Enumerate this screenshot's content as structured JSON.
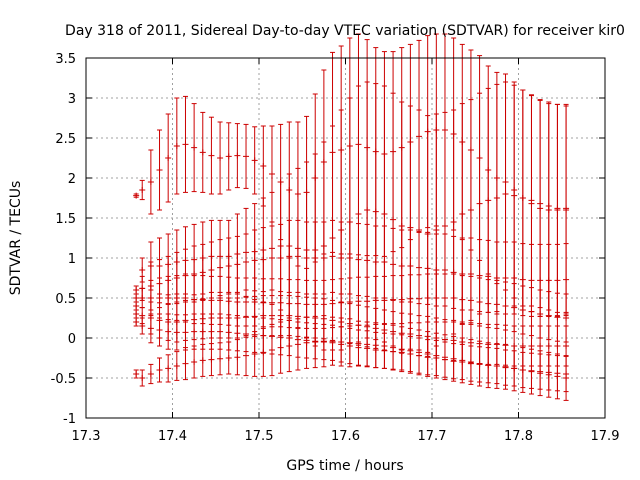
{
  "chart_data": {
    "type": "scatter",
    "title": "Day 318 of 2011, Sidereal Day-to-day VTEC variation (SDTVAR) for receiver kir0",
    "xlabel": "GPS time / hours",
    "ylabel": "SDTVAR / TECUs",
    "xlim": [
      17.3,
      17.9
    ],
    "ylim": [
      -1,
      3.5
    ],
    "xticks": [
      "17.3",
      "17.4",
      "17.5",
      "17.6",
      "17.7",
      "17.8",
      "17.9"
    ],
    "yticks": [
      "-1",
      "-0.5",
      "0",
      "0.5",
      "1",
      "1.5",
      "2",
      "2.5",
      "3",
      "3.5"
    ],
    "grid": true,
    "marker_color": "#cc0000",
    "grid_color": "#a0a0a0",
    "series": [
      {
        "x": [
          17.358,
          17.365,
          17.375,
          17.385,
          17.395,
          17.405,
          17.415,
          17.425,
          17.435,
          17.445,
          17.455,
          17.465,
          17.475,
          17.485,
          17.495,
          17.505,
          17.515,
          17.525,
          17.535,
          17.545,
          17.555,
          17.565,
          17.575,
          17.585,
          17.595,
          17.605,
          17.615,
          17.625,
          17.635,
          17.645,
          17.655,
          17.665,
          17.675,
          17.685,
          17.695,
          17.705,
          17.715,
          17.725,
          17.735,
          17.745,
          17.755,
          17.765,
          17.775,
          17.785,
          17.795,
          17.805,
          17.815,
          17.825,
          17.835,
          17.845,
          17.855
        ],
        "y": [
          1.78,
          1.85,
          1.95,
          2.1,
          2.25,
          2.4,
          2.42,
          2.38,
          2.32,
          2.28,
          2.25,
          2.27,
          2.28,
          2.27,
          2.22,
          2.15,
          2.05,
          1.95,
          1.85,
          1.8,
          1.82,
          2.0,
          2.2,
          2.32,
          2.35,
          2.4,
          2.42,
          2.38,
          2.33,
          2.3,
          2.33,
          2.38,
          2.45,
          2.52,
          2.58,
          2.6,
          2.6,
          2.55,
          2.45,
          2.35,
          2.25,
          2.1,
          2.0,
          1.95,
          1.85,
          1.75,
          1.68,
          1.62,
          1.6,
          1.6,
          1.62
        ],
        "err": [
          0.02,
          0.12,
          0.4,
          0.5,
          0.55,
          0.6,
          0.6,
          0.55,
          0.5,
          0.48,
          0.45,
          0.42,
          0.4,
          0.4,
          0.42,
          0.5,
          0.6,
          0.72,
          0.85,
          0.9,
          0.95,
          1.05,
          1.15,
          1.25,
          1.3,
          1.35,
          1.38,
          1.35,
          1.3,
          1.28,
          1.25,
          1.25,
          1.22,
          1.2,
          1.2,
          1.2,
          1.2,
          1.2,
          1.22,
          1.25,
          1.28,
          1.3,
          1.32,
          1.35,
          1.35,
          1.35,
          1.35,
          1.35,
          1.33,
          1.32,
          1.3
        ]
      },
      {
        "x": [
          17.358,
          17.365,
          17.375,
          17.385,
          17.395,
          17.405,
          17.415,
          17.425,
          17.435,
          17.445,
          17.455,
          17.465,
          17.475,
          17.485,
          17.495,
          17.505,
          17.515,
          17.525,
          17.535,
          17.545,
          17.555,
          17.565,
          17.575,
          17.585,
          17.595,
          17.605,
          17.615,
          17.625,
          17.635,
          17.645,
          17.655,
          17.665,
          17.675,
          17.685,
          17.695,
          17.705,
          17.715,
          17.725,
          17.735,
          17.745,
          17.755,
          17.765,
          17.775,
          17.785,
          17.795,
          17.805,
          17.815,
          17.825,
          17.835,
          17.845,
          17.855
        ],
        "y": [
          0.6,
          0.85,
          0.9,
          0.9,
          0.92,
          0.95,
          0.97,
          0.98,
          1.0,
          1.02,
          1.02,
          1.02,
          1.05,
          1.07,
          1.08,
          1.1,
          1.12,
          1.15,
          1.15,
          1.12,
          1.1,
          1.1,
          1.15,
          1.25,
          1.35,
          1.45,
          1.55,
          1.6,
          1.58,
          1.55,
          1.48,
          1.4,
          1.38,
          1.35,
          1.3,
          1.35,
          1.4,
          1.45,
          1.55,
          1.6,
          1.68,
          1.72,
          1.75,
          1.8,
          1.78,
          1.75,
          1.72,
          1.68,
          1.65,
          1.62,
          1.6
        ],
        "err": [
          0.05,
          0.15,
          0.3,
          0.35,
          0.38,
          0.4,
          0.42,
          0.44,
          0.45,
          0.45,
          0.45,
          0.45,
          0.5,
          0.55,
          0.6,
          0.65,
          0.7,
          0.8,
          0.9,
          1.0,
          1.1,
          1.2,
          1.3,
          1.4,
          1.5,
          1.55,
          1.6,
          1.6,
          1.6,
          1.6,
          1.58,
          1.55,
          1.52,
          1.5,
          1.48,
          1.45,
          1.42,
          1.4,
          1.38,
          1.38,
          1.38,
          1.4,
          1.42,
          1.4,
          1.38,
          1.35,
          1.32,
          1.3,
          1.3,
          1.3,
          1.3
        ]
      },
      {
        "x": [
          17.358,
          17.365,
          17.375,
          17.385,
          17.395,
          17.405,
          17.415,
          17.425,
          17.435,
          17.445,
          17.455,
          17.465,
          17.475,
          17.485,
          17.495,
          17.505,
          17.515,
          17.525,
          17.535,
          17.545,
          17.555,
          17.565,
          17.575,
          17.585,
          17.595,
          17.605,
          17.615,
          17.625,
          17.635,
          17.645,
          17.655,
          17.665,
          17.675,
          17.685,
          17.695,
          17.705,
          17.715,
          17.725,
          17.735,
          17.745,
          17.755,
          17.765,
          17.775,
          17.785,
          17.795,
          17.805,
          17.815,
          17.825,
          17.835,
          17.845,
          17.855
        ],
        "y": [
          0.5,
          0.62,
          0.65,
          0.68,
          0.72,
          0.75,
          0.78,
          0.8,
          0.82,
          0.85,
          0.88,
          0.9,
          0.92,
          0.95,
          0.97,
          0.98,
          1.0,
          1.0,
          1.02,
          1.02,
          1.0,
          1.0,
          1.0,
          1.02,
          1.0,
          1.0,
          0.98,
          0.97,
          0.95,
          0.95,
          0.92,
          0.9,
          0.9,
          0.88,
          0.87,
          0.85,
          0.85,
          0.82,
          0.8,
          0.8,
          0.78,
          0.77,
          0.75,
          0.75,
          0.75,
          0.73,
          0.72,
          0.72,
          0.72,
          0.72,
          0.73
        ],
        "err": [
          0.05,
          0.15,
          0.3,
          0.3,
          0.3,
          0.32,
          0.33,
          0.35,
          0.35,
          0.35,
          0.35,
          0.35,
          0.35,
          0.35,
          0.38,
          0.4,
          0.4,
          0.42,
          0.45,
          0.45,
          0.45,
          0.45,
          0.45,
          0.45,
          0.45,
          0.45,
          0.45,
          0.45,
          0.45,
          0.45,
          0.45,
          0.45,
          0.45,
          0.45,
          0.45,
          0.45,
          0.45,
          0.45,
          0.45,
          0.45,
          0.45,
          0.45,
          0.45,
          0.45,
          0.45,
          0.45,
          0.45,
          0.45,
          0.45,
          0.45,
          0.45
        ]
      },
      {
        "x": [
          17.358,
          17.365,
          17.375,
          17.385,
          17.395,
          17.405,
          17.415,
          17.425,
          17.435,
          17.445,
          17.455,
          17.465,
          17.475,
          17.485,
          17.495,
          17.505,
          17.515,
          17.525,
          17.535,
          17.545,
          17.555,
          17.565,
          17.575,
          17.585,
          17.595,
          17.605,
          17.615,
          17.625,
          17.635,
          17.645,
          17.655,
          17.665,
          17.675,
          17.685,
          17.695,
          17.705,
          17.715,
          17.725,
          17.735,
          17.745,
          17.755,
          17.765,
          17.775,
          17.785,
          17.795,
          17.805,
          17.815,
          17.825,
          17.835,
          17.845,
          17.855
        ],
        "y": [
          0.4,
          0.5,
          0.5,
          0.5,
          0.5,
          0.5,
          0.5,
          0.48,
          0.48,
          0.47,
          0.47,
          0.46,
          0.45,
          0.45,
          0.45,
          0.44,
          0.44,
          0.44,
          0.43,
          0.43,
          0.42,
          0.42,
          0.42,
          0.43,
          0.44,
          0.45,
          0.46,
          0.46,
          0.47,
          0.47,
          0.48,
          0.48,
          0.49,
          0.49,
          0.5,
          0.5,
          0.5,
          0.5,
          0.48,
          0.47,
          0.45,
          0.43,
          0.42,
          0.4,
          0.38,
          0.35,
          0.33,
          0.3,
          0.28,
          0.26,
          0.25
        ],
        "err": [
          0.05,
          0.12,
          0.22,
          0.25,
          0.27,
          0.28,
          0.3,
          0.3,
          0.3,
          0.3,
          0.3,
          0.3,
          0.3,
          0.3,
          0.3,
          0.3,
          0.3,
          0.3,
          0.3,
          0.3,
          0.3,
          0.3,
          0.3,
          0.3,
          0.3,
          0.3,
          0.3,
          0.3,
          0.3,
          0.3,
          0.3,
          0.3,
          0.3,
          0.3,
          0.3,
          0.3,
          0.3,
          0.3,
          0.3,
          0.3,
          0.3,
          0.3,
          0.3,
          0.3,
          0.3,
          0.3,
          0.3,
          0.3,
          0.3,
          0.3,
          0.3
        ]
      },
      {
        "x": [
          17.358,
          17.365,
          17.375,
          17.385,
          17.395,
          17.405,
          17.415,
          17.425,
          17.435,
          17.445,
          17.455,
          17.465,
          17.475,
          17.485,
          17.495,
          17.505,
          17.515,
          17.525,
          17.535,
          17.545,
          17.555,
          17.565,
          17.575,
          17.585,
          17.595,
          17.605,
          17.615,
          17.625,
          17.635,
          17.645,
          17.655,
          17.665,
          17.675,
          17.685,
          17.695,
          17.705,
          17.715,
          17.725,
          17.735,
          17.745,
          17.755,
          17.765,
          17.775,
          17.785,
          17.795,
          17.805,
          17.815,
          17.825,
          17.835,
          17.845,
          17.855
        ],
        "y": [
          0.3,
          0.28,
          0.25,
          0.22,
          0.2,
          0.2,
          0.22,
          0.23,
          0.24,
          0.25,
          0.25,
          0.25,
          0.25,
          0.26,
          0.27,
          0.28,
          0.28,
          0.28,
          0.28,
          0.27,
          0.26,
          0.25,
          0.24,
          0.22,
          0.2,
          0.18,
          0.16,
          0.14,
          0.12,
          0.1,
          0.08,
          0.06,
          0.05,
          0.03,
          0.02,
          0.0,
          -0.02,
          -0.03,
          -0.05,
          -0.06,
          -0.07,
          -0.08,
          -0.08,
          -0.09,
          -0.1,
          -0.1,
          -0.1,
          -0.1,
          -0.1,
          -0.1,
          -0.1
        ],
        "err": [
          0.05,
          0.1,
          0.2,
          0.22,
          0.23,
          0.25,
          0.25,
          0.25,
          0.25,
          0.25,
          0.25,
          0.25,
          0.25,
          0.25,
          0.25,
          0.25,
          0.25,
          0.25,
          0.25,
          0.25,
          0.25,
          0.25,
          0.25,
          0.25,
          0.25,
          0.25,
          0.25,
          0.25,
          0.25,
          0.25,
          0.25,
          0.25,
          0.25,
          0.25,
          0.25,
          0.25,
          0.25,
          0.25,
          0.25,
          0.25,
          0.25,
          0.25,
          0.25,
          0.25,
          0.25,
          0.25,
          0.25,
          0.25,
          0.25,
          0.25,
          0.25
        ]
      },
      {
        "x": [
          17.358,
          17.365,
          17.375,
          17.385,
          17.395,
          17.405,
          17.415,
          17.425,
          17.435,
          17.445,
          17.455,
          17.465,
          17.475,
          17.485,
          17.495,
          17.505,
          17.515,
          17.525,
          17.535,
          17.545,
          17.555,
          17.565,
          17.575,
          17.585,
          17.595,
          17.605,
          17.615,
          17.625,
          17.635,
          17.645,
          17.655,
          17.665,
          17.675,
          17.685,
          17.695,
          17.705,
          17.715,
          17.725,
          17.735,
          17.745,
          17.755,
          17.765,
          17.775,
          17.785,
          17.795,
          17.805,
          17.815,
          17.825,
          17.835,
          17.845,
          17.855
        ],
        "y": [
          0.2,
          0.15,
          0.12,
          0.1,
          0.08,
          0.07,
          0.07,
          0.08,
          0.08,
          0.08,
          0.08,
          0.07,
          0.06,
          0.05,
          0.04,
          0.03,
          0.02,
          0.01,
          0.0,
          -0.02,
          -0.03,
          -0.04,
          -0.05,
          -0.06,
          -0.08,
          -0.1,
          -0.12,
          -0.13,
          -0.15,
          -0.16,
          -0.17,
          -0.18,
          -0.2,
          -0.22,
          -0.24,
          -0.25,
          -0.27,
          -0.29,
          -0.3,
          -0.32,
          -0.33,
          -0.34,
          -0.35,
          -0.37,
          -0.38,
          -0.4,
          -0.41,
          -0.42,
          -0.43,
          -0.44,
          -0.45
        ],
        "err": [
          0.05,
          0.1,
          0.18,
          0.2,
          0.22,
          0.22,
          0.22,
          0.22,
          0.22,
          0.22,
          0.22,
          0.22,
          0.22,
          0.22,
          0.22,
          0.22,
          0.22,
          0.22,
          0.22,
          0.22,
          0.22,
          0.22,
          0.22,
          0.22,
          0.22,
          0.22,
          0.22,
          0.22,
          0.22,
          0.22,
          0.22,
          0.22,
          0.22,
          0.22,
          0.22,
          0.22,
          0.22,
          0.22,
          0.22,
          0.22,
          0.22,
          0.22,
          0.22,
          0.22,
          0.22,
          0.22,
          0.22,
          0.22,
          0.22,
          0.22,
          0.22
        ]
      },
      {
        "x": [
          17.358,
          17.365,
          17.375,
          17.385,
          17.395,
          17.405,
          17.415,
          17.425,
          17.435,
          17.445,
          17.455,
          17.465,
          17.475,
          17.485,
          17.495,
          17.505,
          17.515,
          17.525,
          17.535,
          17.545,
          17.555,
          17.565,
          17.575,
          17.585,
          17.595,
          17.605,
          17.615,
          17.625,
          17.635,
          17.645,
          17.655,
          17.665,
          17.675,
          17.685,
          17.695,
          17.705,
          17.715,
          17.725,
          17.735,
          17.745,
          17.755,
          17.765,
          17.775,
          17.785,
          17.795,
          17.805,
          17.815,
          17.825,
          17.835,
          17.845,
          17.855
        ],
        "y": [
          -0.45,
          -0.5,
          -0.45,
          -0.4,
          -0.38,
          -0.35,
          -0.32,
          -0.3,
          -0.28,
          -0.27,
          -0.26,
          -0.25,
          -0.24,
          -0.22,
          -0.2,
          -0.18,
          -0.15,
          -0.12,
          -0.1,
          -0.08,
          -0.06,
          -0.05,
          -0.04,
          -0.04,
          -0.05,
          -0.06,
          -0.07,
          -0.08,
          -0.09,
          -0.1,
          -0.12,
          -0.14,
          -0.16,
          -0.18,
          -0.2,
          -0.22,
          -0.24,
          -0.26,
          -0.28,
          -0.3,
          -0.32,
          -0.34,
          -0.35,
          -0.36,
          -0.38,
          -0.4,
          -0.42,
          -0.44,
          -0.46,
          -0.48,
          -0.5
        ],
        "err": [
          0.05,
          0.1,
          0.12,
          0.15,
          0.17,
          0.18,
          0.2,
          0.2,
          0.2,
          0.2,
          0.2,
          0.2,
          0.22,
          0.25,
          0.28,
          0.3,
          0.32,
          0.32,
          0.32,
          0.32,
          0.32,
          0.32,
          0.32,
          0.3,
          0.3,
          0.3,
          0.28,
          0.28,
          0.28,
          0.28,
          0.28,
          0.28,
          0.28,
          0.28,
          0.28,
          0.28,
          0.28,
          0.28,
          0.28,
          0.28,
          0.28,
          0.28,
          0.28,
          0.28,
          0.28,
          0.28,
          0.28,
          0.28,
          0.28,
          0.28,
          0.28
        ]
      }
    ]
  }
}
